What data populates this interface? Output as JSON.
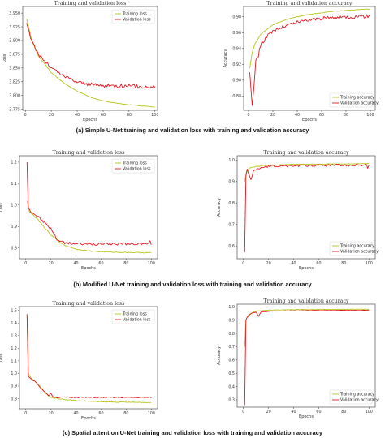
{
  "captions": [
    "(a) Simple U-Net training and validation loss with training and validation accuracy",
    "(b) Modified U-Net training and validation loss with training and validation accuracy",
    "(c) Spatial attention U-Net training and validation loss with training and validation accuracy"
  ],
  "colors": {
    "training": "#b8c419",
    "validation": "#e8141e",
    "axis": "#333333"
  },
  "chart_data": [
    {
      "id": "a-loss",
      "type": "line",
      "title": "Training and validation loss",
      "xlabel": "Epochs",
      "ylabel": "Loss",
      "xlim": [
        -2,
        102
      ],
      "ylim": [
        3.773,
        3.962
      ],
      "xticks": [
        0,
        20,
        40,
        60,
        80,
        100
      ],
      "yticks": [
        3.775,
        3.8,
        3.825,
        3.85,
        3.875,
        3.9,
        3.925,
        3.95
      ],
      "ytick_labels": [
        "3.775",
        "3.800",
        "3.825",
        "3.850",
        "3.875",
        "3.900",
        "3.925",
        "3.950"
      ],
      "legend": "top-right",
      "series": [
        {
          "name": "Training loss",
          "color": "training",
          "noise": 0.0005,
          "points": [
            [
              1,
              3.94
            ],
            [
              5,
              3.9
            ],
            [
              10,
              3.872
            ],
            [
              20,
              3.842
            ],
            [
              30,
              3.822
            ],
            [
              40,
              3.808
            ],
            [
              50,
              3.797
            ],
            [
              60,
              3.79
            ],
            [
              70,
              3.786
            ],
            [
              80,
              3.783
            ],
            [
              90,
              3.781
            ],
            [
              100,
              3.779
            ]
          ]
        },
        {
          "name": "Validation loss",
          "color": "validation",
          "noise": 0.0035,
          "points": [
            [
              1,
              3.932
            ],
            [
              5,
              3.898
            ],
            [
              10,
              3.876
            ],
            [
              20,
              3.85
            ],
            [
              30,
              3.835
            ],
            [
              40,
              3.825
            ],
            [
              50,
              3.82
            ],
            [
              60,
              3.818
            ],
            [
              70,
              3.818
            ],
            [
              80,
              3.817
            ],
            [
              90,
              3.816
            ],
            [
              100,
              3.816
            ]
          ]
        }
      ]
    },
    {
      "id": "a-acc",
      "type": "line",
      "title": "Training and validation accuracy",
      "xlabel": "Epochs",
      "ylabel": "Accuracy",
      "xlim": [
        -4,
        104
      ],
      "ylim": [
        0.862,
        0.993
      ],
      "xticks": [
        0,
        20,
        40,
        60,
        80,
        100
      ],
      "yticks": [
        0.88,
        0.9,
        0.92,
        0.94,
        0.96,
        0.98
      ],
      "ytick_labels": [
        "0.88",
        "0.90",
        "0.92",
        "0.94",
        "0.96",
        "0.98"
      ],
      "legend": "bottom-right",
      "series": [
        {
          "name": "Training accuracy",
          "color": "training",
          "noise": 0.0004,
          "points": [
            [
              1,
              0.915
            ],
            [
              3,
              0.935
            ],
            [
              5,
              0.945
            ],
            [
              10,
              0.958
            ],
            [
              20,
              0.97
            ],
            [
              30,
              0.976
            ],
            [
              40,
              0.98
            ],
            [
              50,
              0.983
            ],
            [
              60,
              0.985
            ],
            [
              70,
              0.987
            ],
            [
              80,
              0.988
            ],
            [
              90,
              0.989
            ],
            [
              100,
              0.99
            ]
          ]
        },
        {
          "name": "Validation accuracy",
          "color": "validation",
          "noise": 0.0022,
          "points": [
            [
              1,
              0.91
            ],
            [
              3,
              0.868
            ],
            [
              4,
              0.885
            ],
            [
              6,
              0.925
            ],
            [
              8,
              0.93
            ],
            [
              10,
              0.945
            ],
            [
              15,
              0.955
            ],
            [
              20,
              0.962
            ],
            [
              30,
              0.968
            ],
            [
              40,
              0.973
            ],
            [
              50,
              0.976
            ],
            [
              60,
              0.978
            ],
            [
              70,
              0.979
            ],
            [
              80,
              0.98
            ],
            [
              90,
              0.98
            ],
            [
              100,
              0.981
            ]
          ]
        }
      ]
    },
    {
      "id": "b-loss",
      "type": "line",
      "title": "Training and validation loss",
      "xlabel": "Epochs",
      "ylabel": "Loss",
      "xlim": [
        -5,
        105
      ],
      "ylim": [
        0.75,
        1.23
      ],
      "xticks": [
        0,
        20,
        40,
        60,
        80,
        100
      ],
      "yticks": [
        0.8,
        0.9,
        1.0,
        1.1,
        1.2
      ],
      "ytick_labels": [
        "0.8",
        "0.9",
        "1.0",
        "1.1",
        "1.2"
      ],
      "legend": "top-right",
      "series": [
        {
          "name": "Training loss",
          "color": "training",
          "noise": 0.002,
          "points": [
            [
              1,
              1.02
            ],
            [
              3,
              0.97
            ],
            [
              10,
              0.93
            ],
            [
              20,
              0.86
            ],
            [
              30,
              0.815
            ],
            [
              40,
              0.795
            ],
            [
              50,
              0.787
            ],
            [
              60,
              0.783
            ],
            [
              70,
              0.781
            ],
            [
              80,
              0.78
            ],
            [
              90,
              0.779
            ],
            [
              100,
              0.778
            ]
          ]
        },
        {
          "name": "Validation loss",
          "color": "validation",
          "noise": 0.006,
          "points": [
            [
              1,
              1.2
            ],
            [
              2,
              0.99
            ],
            [
              4,
              0.97
            ],
            [
              10,
              0.945
            ],
            [
              20,
              0.89
            ],
            [
              25,
              0.84
            ],
            [
              30,
              0.825
            ],
            [
              40,
              0.82
            ],
            [
              50,
              0.818
            ],
            [
              60,
              0.818
            ],
            [
              70,
              0.82
            ],
            [
              80,
              0.818
            ],
            [
              90,
              0.82
            ],
            [
              98,
              0.82
            ],
            [
              99,
              0.835
            ],
            [
              100,
              0.82
            ]
          ]
        }
      ]
    },
    {
      "id": "b-acc",
      "type": "line",
      "title": "Training and validation accuracy",
      "xlabel": "Epochs",
      "ylabel": "Accuracy",
      "xlim": [
        -5,
        105
      ],
      "ylim": [
        0.54,
        1.02
      ],
      "xticks": [
        0,
        20,
        40,
        60,
        80,
        100
      ],
      "yticks": [
        0.6,
        0.7,
        0.8,
        0.9,
        1.0
      ],
      "ytick_labels": [
        "0.6",
        "0.7",
        "0.8",
        "0.9",
        "1.0"
      ],
      "legend": "bottom-right",
      "series": [
        {
          "name": "Training accuracy",
          "color": "training",
          "noise": 0.001,
          "points": [
            [
              1,
              0.9
            ],
            [
              3,
              0.95
            ],
            [
              5,
              0.962
            ],
            [
              10,
              0.97
            ],
            [
              20,
              0.976
            ],
            [
              40,
              0.98
            ],
            [
              60,
              0.981
            ],
            [
              80,
              0.982
            ],
            [
              100,
              0.983
            ]
          ]
        },
        {
          "name": "Validation accuracy",
          "color": "validation",
          "noise": 0.005,
          "points": [
            [
              1,
              0.57
            ],
            [
              2,
              0.93
            ],
            [
              3,
              0.96
            ],
            [
              4,
              0.94
            ],
            [
              6,
              0.91
            ],
            [
              8,
              0.95
            ],
            [
              10,
              0.955
            ],
            [
              15,
              0.965
            ],
            [
              20,
              0.97
            ],
            [
              30,
              0.972
            ],
            [
              40,
              0.973
            ],
            [
              50,
              0.974
            ],
            [
              60,
              0.975
            ],
            [
              70,
              0.976
            ],
            [
              80,
              0.976
            ],
            [
              90,
              0.976
            ],
            [
              98,
              0.976
            ],
            [
              99,
              0.965
            ],
            [
              100,
              0.975
            ]
          ]
        }
      ]
    },
    {
      "id": "c-loss",
      "type": "line",
      "title": "Training and validation loss",
      "xlabel": "Epochs",
      "ylabel": "Loss",
      "xlim": [
        -5,
        105
      ],
      "ylim": [
        0.72,
        1.53
      ],
      "xticks": [
        0,
        20,
        40,
        60,
        80,
        100
      ],
      "yticks": [
        0.8,
        0.9,
        1.0,
        1.1,
        1.2,
        1.3,
        1.4,
        1.5
      ],
      "ytick_labels": [
        "0.8",
        "0.9",
        "1.0",
        "1.1",
        "1.2",
        "1.3",
        "1.4",
        "1.5"
      ],
      "legend": "top-right",
      "series": [
        {
          "name": "Training loss",
          "color": "training",
          "noise": 0.003,
          "points": [
            [
              1,
              1.47
            ],
            [
              2,
              1.0
            ],
            [
              4,
              0.965
            ],
            [
              8,
              0.93
            ],
            [
              12,
              0.89
            ],
            [
              16,
              0.84
            ],
            [
              20,
              0.81
            ],
            [
              30,
              0.795
            ],
            [
              40,
              0.785
            ],
            [
              50,
              0.78
            ],
            [
              60,
              0.775
            ],
            [
              80,
              0.772
            ],
            [
              100,
              0.77
            ]
          ]
        },
        {
          "name": "Validation loss",
          "color": "validation",
          "noise": 0.004,
          "points": [
            [
              1,
              1.47
            ],
            [
              2,
              0.98
            ],
            [
              4,
              0.96
            ],
            [
              8,
              0.93
            ],
            [
              12,
              0.88
            ],
            [
              16,
              0.85
            ],
            [
              18,
              0.825
            ],
            [
              20,
              0.84
            ],
            [
              22,
              0.815
            ],
            [
              25,
              0.81
            ],
            [
              30,
              0.812
            ],
            [
              40,
              0.81
            ],
            [
              50,
              0.81
            ],
            [
              60,
              0.81
            ],
            [
              70,
              0.81
            ],
            [
              80,
              0.81
            ],
            [
              90,
              0.81
            ],
            [
              100,
              0.81
            ]
          ]
        }
      ]
    },
    {
      "id": "c-acc",
      "type": "line",
      "title": "Training and validation accuracy",
      "xlabel": "Epochs",
      "ylabel": "Accuracy",
      "xlim": [
        -5,
        105
      ],
      "ylim": [
        0.245,
        1.02
      ],
      "xticks": [
        0,
        20,
        40,
        60,
        80,
        100
      ],
      "yticks": [
        0.3,
        0.4,
        0.5,
        0.6,
        0.7,
        0.8,
        0.9,
        1.0
      ],
      "ytick_labels": [
        "0.3",
        "0.4",
        "0.5",
        "0.6",
        "0.7",
        "0.8",
        "0.9",
        "1.0"
      ],
      "legend": "bottom-right",
      "series": [
        {
          "name": "Training accuracy",
          "color": "training",
          "noise": 0.002,
          "points": [
            [
              1,
              0.7
            ],
            [
              2,
              0.9
            ],
            [
              4,
              0.94
            ],
            [
              8,
              0.96
            ],
            [
              12,
              0.97
            ],
            [
              20,
              0.975
            ],
            [
              40,
              0.978
            ],
            [
              60,
              0.98
            ],
            [
              80,
              0.981
            ],
            [
              100,
              0.982
            ]
          ]
        },
        {
          "name": "Validation accuracy",
          "color": "validation",
          "noise": 0.002,
          "points": [
            [
              1,
              0.26
            ],
            [
              2,
              0.9
            ],
            [
              3,
              0.92
            ],
            [
              6,
              0.95
            ],
            [
              10,
              0.96
            ],
            [
              12,
              0.93
            ],
            [
              14,
              0.96
            ],
            [
              20,
              0.968
            ],
            [
              40,
              0.97
            ],
            [
              60,
              0.972
            ],
            [
              80,
              0.973
            ],
            [
              100,
              0.973
            ]
          ]
        }
      ]
    }
  ]
}
